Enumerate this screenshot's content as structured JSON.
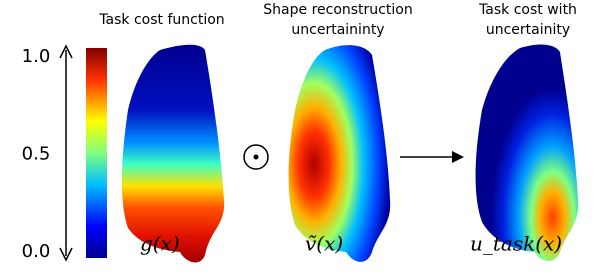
{
  "colorbar": {
    "ylim": [
      0,
      1
    ],
    "ticks": [
      {
        "value": 1,
        "label": "1.0"
      },
      {
        "value": 0.5,
        "label": "0.5"
      },
      {
        "value": 0,
        "label": "0.0"
      }
    ]
  },
  "panels": [
    {
      "title": [
        "Task cost function"
      ],
      "label": "g(x)"
    },
    {
      "title": [
        "Shape reconstruction",
        "uncertaininty"
      ],
      "label": "ṽ(x)"
    },
    {
      "title": [
        "Task cost with",
        "uncertainity"
      ],
      "label": "u_task(x)"
    }
  ]
}
